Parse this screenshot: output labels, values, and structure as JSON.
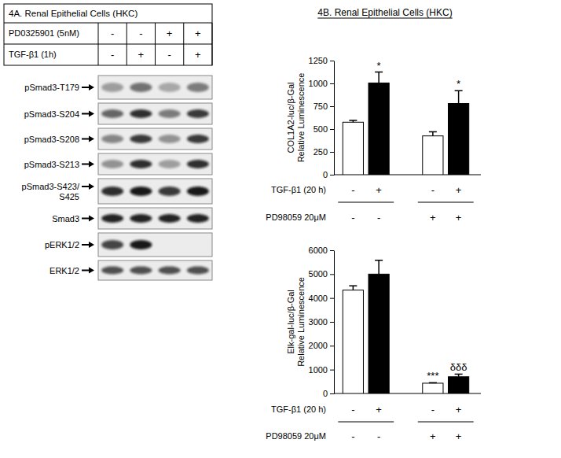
{
  "blot_panel": {
    "title": "4A. Renal Epithelial Cells (HKC)",
    "treatments": [
      {
        "label": "PD0325901 (5nM)",
        "values": [
          "-",
          "-",
          "+",
          "+"
        ]
      },
      {
        "label": "TGF-β1 (1h)",
        "values": [
          "-",
          "+",
          "-",
          "+"
        ]
      }
    ],
    "blots": [
      {
        "label": [
          "pSmad3-T179"
        ],
        "band_intensity": [
          0.35,
          0.55,
          0.3,
          0.5
        ]
      },
      {
        "label": [
          "pSmad3-S204"
        ],
        "band_intensity": [
          0.6,
          0.85,
          0.5,
          0.8
        ]
      },
      {
        "label": [
          "pSmad3-S208"
        ],
        "band_intensity": [
          0.45,
          0.8,
          0.4,
          0.8
        ]
      },
      {
        "label": [
          "pSmad3-S213"
        ],
        "band_intensity": [
          0.4,
          0.85,
          0.35,
          0.85
        ]
      },
      {
        "label": [
          "pSmad3-S423/",
          "S425"
        ],
        "band_intensity": [
          0.85,
          0.95,
          0.8,
          0.95
        ]
      },
      {
        "label": [
          "Smad3"
        ],
        "band_intensity": [
          0.9,
          0.9,
          0.9,
          0.9
        ]
      },
      {
        "label": [
          "pERK1/2"
        ],
        "band_intensity": [
          0.75,
          0.95,
          0,
          0
        ]
      },
      {
        "label": [
          "ERK1/2"
        ],
        "band_intensity": [
          0.7,
          0.7,
          0.7,
          0.7
        ]
      }
    ]
  },
  "chart_data": [
    {
      "type": "bar",
      "title": "4B. Renal Epithelial Cells (HKC)",
      "ylabel": [
        "COL1A2-luc/β-Gal",
        "Relative Luminescence"
      ],
      "categories": [
        null,
        null,
        null,
        null
      ],
      "values": [
        575,
        1005,
        425,
        780
      ],
      "errors": [
        20,
        120,
        45,
        140
      ],
      "colors": [
        "#ffffff",
        "#000000",
        "#ffffff",
        "#000000"
      ],
      "annotations": [
        null,
        "*",
        null,
        "*"
      ],
      "conditions": [
        {
          "label": "TGF-β1 (20 h)",
          "values": [
            "-",
            "+",
            "-",
            "+"
          ]
        },
        {
          "label": "PD98059 20μM",
          "values": [
            "-",
            "-",
            "+",
            "+"
          ]
        }
      ],
      "ylim": [
        0,
        1250
      ],
      "yticks": [
        0,
        250,
        500,
        750,
        1000,
        1250
      ]
    },
    {
      "type": "bar",
      "ylabel": [
        "Elk-gal-luc/β-Gal",
        "Relative Luminescence"
      ],
      "categories": [
        null,
        null,
        null,
        null
      ],
      "values": [
        4330,
        5000,
        430,
        700
      ],
      "errors": [
        180,
        580,
        20,
        110
      ],
      "colors": [
        "#ffffff",
        "#000000",
        "#ffffff",
        "#000000"
      ],
      "annotations": [
        null,
        null,
        "***",
        "δδδ"
      ],
      "conditions": [
        {
          "label": "TGF-β1 (20 h)",
          "values": [
            "-",
            "+",
            "-",
            "+"
          ]
        },
        {
          "label": "PD98059 20μM",
          "values": [
            "-",
            "-",
            "+",
            "+"
          ]
        }
      ],
      "ylim": [
        0,
        6000
      ],
      "yticks": [
        0,
        1000,
        2000,
        3000,
        4000,
        5000,
        6000
      ]
    }
  ]
}
